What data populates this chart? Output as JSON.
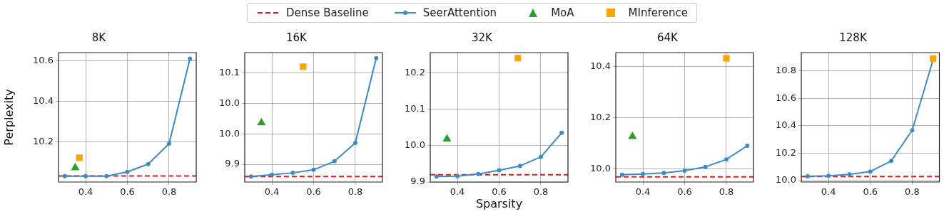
{
  "chart_data": [
    {
      "type": "line",
      "title": "8K",
      "ylabel": "Perplexity",
      "legend": "top",
      "grid": true,
      "line_style": "solid",
      "xlim": [
        0.27,
        0.93
      ],
      "xticks": [
        0.4,
        0.6,
        0.8
      ],
      "ylim": [
        10.0,
        10.64
      ],
      "yticks": [
        10.2,
        10.4,
        10.6
      ],
      "ref_lines": [
        {
          "axis": "y",
          "value": 10.03,
          "label": "Dense Baseline",
          "color": "#e31a1c",
          "line_style": "dashed"
        }
      ],
      "series": [
        {
          "name": "SeerAttention",
          "marker": "circle",
          "color": "#3d8bc4",
          "x": [
            0.3,
            0.4,
            0.5,
            0.6,
            0.7,
            0.8,
            0.9
          ],
          "values": [
            10.029,
            10.029,
            10.029,
            10.05,
            10.089,
            10.19,
            10.61
          ]
        },
        {
          "name": "MoA",
          "type": "scatter",
          "marker": "triangle",
          "color": "#2ca02c",
          "x": [
            0.35
          ],
          "values": [
            10.07
          ]
        },
        {
          "name": "MInference",
          "type": "scatter",
          "marker": "square",
          "color": "#ffa500",
          "x": [
            0.37
          ],
          "values": [
            10.12
          ]
        }
      ]
    },
    {
      "type": "line",
      "title": "16K",
      "grid": true,
      "line_style": "solid",
      "xlim": [
        0.27,
        0.93
      ],
      "xticks": [
        0.4,
        0.6,
        0.8
      ],
      "ylim": [
        9.871,
        10.083
      ],
      "yticks": [
        9.9,
        {
          "value": 9.95,
          "label": "10.0"
        },
        {
          "value": 10.0,
          "label": "10.0"
        },
        {
          "value": 10.05,
          "label": "10.1"
        }
      ],
      "ref_lines": [
        {
          "axis": "y",
          "value": 9.88,
          "color": "#e31a1c",
          "line_style": "dashed"
        }
      ],
      "series": [
        {
          "marker": "circle",
          "color": "#3d8bc4",
          "x": [
            0.3,
            0.4,
            0.5,
            0.6,
            0.7,
            0.8,
            0.9
          ],
          "values": [
            9.88,
            9.883,
            9.886,
            9.891,
            9.905,
            9.935,
            10.074
          ]
        },
        {
          "type": "scatter",
          "marker": "triangle",
          "color": "#2ca02c",
          "x": [
            0.35
          ],
          "values": [
            9.968
          ]
        },
        {
          "type": "scatter",
          "marker": "square",
          "color": "#ffa500",
          "x": [
            0.55
          ],
          "values": [
            10.06
          ]
        }
      ]
    },
    {
      "type": "line",
      "title": "32K",
      "xlabel": "Sparsity",
      "grid": true,
      "line_style": "solid",
      "xlim": [
        0.27,
        0.93
      ],
      "xticks": [
        0.4,
        0.6,
        0.8
      ],
      "ylim": [
        9.9,
        10.255
      ],
      "yticks": [
        9.9,
        {
          "value": 10.0,
          "label": "10.0"
        },
        10.1,
        10.2
      ],
      "ref_lines": [
        {
          "axis": "y",
          "value": 9.92,
          "color": "#e31a1c",
          "line_style": "dashed"
        }
      ],
      "series": [
        {
          "marker": "circle",
          "color": "#3d8bc4",
          "x": [
            0.3,
            0.4,
            0.5,
            0.6,
            0.7,
            0.8,
            0.9
          ],
          "values": [
            9.915,
            9.916,
            9.922,
            9.932,
            9.944,
            9.969,
            10.035
          ]
        },
        {
          "type": "scatter",
          "marker": "triangle",
          "color": "#2ca02c",
          "x": [
            0.35
          ],
          "values": [
            10.018
          ]
        },
        {
          "type": "scatter",
          "marker": "square",
          "color": "#ffa500",
          "x": [
            0.69
          ],
          "values": [
            10.24
          ]
        }
      ]
    },
    {
      "type": "line",
      "title": "64K",
      "grid": true,
      "line_style": "solid",
      "xlim": [
        0.27,
        0.93
      ],
      "xticks": [
        0.4,
        0.6,
        0.8
      ],
      "ylim": [
        9.95,
        10.453
      ],
      "yticks": [
        {
          "value": 10.0,
          "label": "10.0"
        },
        10.2,
        10.4
      ],
      "ref_lines": [
        {
          "axis": "y",
          "value": 9.97,
          "color": "#e31a1c",
          "line_style": "dashed"
        }
      ],
      "series": [
        {
          "marker": "circle",
          "color": "#3d8bc4",
          "x": [
            0.3,
            0.4,
            0.5,
            0.6,
            0.7,
            0.8,
            0.9
          ],
          "values": [
            9.978,
            9.981,
            9.985,
            9.994,
            10.009,
            10.038,
            10.091
          ]
        },
        {
          "type": "scatter",
          "marker": "triangle",
          "color": "#2ca02c",
          "x": [
            0.35
          ],
          "values": [
            10.127
          ]
        },
        {
          "type": "scatter",
          "marker": "square",
          "color": "#ffa500",
          "x": [
            0.8
          ],
          "values": [
            10.431
          ]
        }
      ]
    },
    {
      "type": "line",
      "title": "128K",
      "grid": true,
      "line_style": "solid",
      "xlim": [
        0.27,
        0.93
      ],
      "xticks": [
        0.4,
        0.6,
        0.8
      ],
      "ylim": [
        9.99,
        10.933
      ],
      "yticks": [
        {
          "value": 10.0,
          "label": "10.0"
        },
        10.2,
        10.4,
        10.6,
        10.8
      ],
      "ref_lines": [
        {
          "axis": "y",
          "value": 10.03,
          "color": "#e31a1c",
          "line_style": "dashed"
        }
      ],
      "series": [
        {
          "marker": "circle",
          "color": "#3d8bc4",
          "x": [
            0.3,
            0.4,
            0.5,
            0.6,
            0.7,
            0.8,
            0.9
          ],
          "values": [
            10.031,
            10.035,
            10.046,
            10.067,
            10.144,
            10.367,
            10.881
          ]
        },
        {
          "type": "scatter",
          "marker": "square",
          "color": "#ffa500",
          "x": [
            0.9
          ],
          "values": [
            10.89
          ]
        }
      ]
    }
  ]
}
